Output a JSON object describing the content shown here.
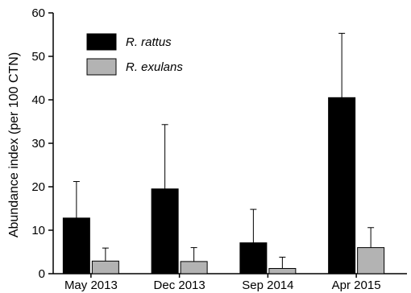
{
  "chart_data": {
    "type": "bar",
    "title": "",
    "xlabel": "",
    "ylabel": "Abundance index (per 100 CTN)",
    "ylim": [
      0,
      60
    ],
    "yticks": [
      0,
      10,
      20,
      30,
      40,
      50,
      60
    ],
    "categories": [
      "May 2013",
      "Dec 2013",
      "Sep 2014",
      "Apr 2015"
    ],
    "series": [
      {
        "name": "R. rattus",
        "color": "#000000",
        "values": [
          12.8,
          19.5,
          7.1,
          40.5
        ],
        "error_upper": [
          21.2,
          34.3,
          14.8,
          55.3
        ]
      },
      {
        "name": "R. exulans",
        "color": "#b3b3b3",
        "values": [
          2.9,
          2.8,
          1.2,
          6.0
        ],
        "error_upper": [
          5.9,
          6.0,
          3.8,
          10.6
        ]
      }
    ],
    "legend_position": "top-left",
    "grid": false
  }
}
